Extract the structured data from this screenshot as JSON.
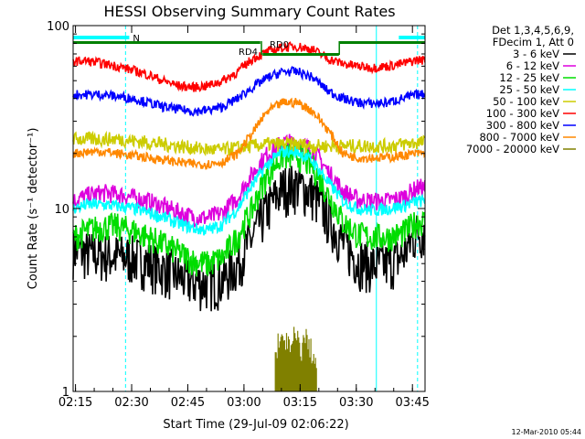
{
  "chart_data": {
    "type": "line",
    "title": "HESSI Observing Summary Count Rates",
    "xlabel": "Start Time (29-Jul-09 02:06:22)",
    "ylabel": "Count Rate (s⁻¹ detector⁻¹)",
    "yscale": "log",
    "ylim": [
      1,
      100
    ],
    "xlim_minutes": [
      8,
      102
    ],
    "x_tick_labels": [
      "02:15",
      "02:30",
      "02:45",
      "03:00",
      "03:15",
      "03:30",
      "03:45"
    ],
    "y_tick_labels": [
      "1",
      "10",
      "100"
    ],
    "legend_header": [
      "Det 1,3,4,5,6,9,",
      "FDecim 1, Att 0"
    ],
    "legend_position": "right",
    "footer": "12-Mar-2010 05:44",
    "series": [
      {
        "name": "3 - 6 keV",
        "color": "#000000",
        "x": [
          8,
          12,
          16,
          20,
          24,
          28,
          32,
          36,
          40,
          44,
          48,
          52,
          56,
          60,
          64,
          68,
          72,
          76,
          80,
          84,
          88,
          92,
          96,
          100
        ],
        "y": [
          6,
          5.7,
          5.6,
          5.5,
          5.4,
          5.1,
          4.7,
          4.3,
          4.0,
          3.9,
          4.1,
          5.0,
          7.0,
          10.0,
          13.0,
          13.5,
          12.0,
          9.0,
          6.5,
          5.2,
          4.9,
          5.0,
          5.5,
          7.5
        ]
      },
      {
        "name": "6 - 12 keV",
        "color": "#dd00dd",
        "x": [
          8,
          12,
          16,
          20,
          24,
          28,
          32,
          36,
          40,
          44,
          48,
          52,
          56,
          60,
          64,
          68,
          72,
          76,
          80,
          84,
          88,
          92,
          96,
          100
        ],
        "y": [
          11,
          11.8,
          12.2,
          12.0,
          11.5,
          11.0,
          10.3,
          9.6,
          9.0,
          8.9,
          9.5,
          11.5,
          15.5,
          20,
          23,
          23,
          21,
          16,
          12.5,
          11.2,
          11,
          11,
          11.5,
          13
        ]
      },
      {
        "name": "12 - 25 keV",
        "color": "#00dd00",
        "x": [
          8,
          12,
          16,
          20,
          24,
          28,
          32,
          36,
          40,
          44,
          48,
          52,
          56,
          60,
          64,
          68,
          72,
          76,
          80,
          84,
          88,
          92,
          96,
          100
        ],
        "y": [
          7,
          7.6,
          8.0,
          8.0,
          7.6,
          7.0,
          6.4,
          5.8,
          5.2,
          5.0,
          5.4,
          7.0,
          10.0,
          15.5,
          19.5,
          19.5,
          17,
          12,
          8.5,
          7.2,
          7,
          7,
          7.3,
          8.5
        ]
      },
      {
        "name": "25 - 50 keV",
        "color": "#00ffff",
        "x": [
          8,
          12,
          16,
          20,
          24,
          28,
          32,
          36,
          40,
          44,
          48,
          52,
          56,
          60,
          64,
          68,
          72,
          76,
          80,
          84,
          88,
          92,
          96,
          100
        ],
        "y": [
          10,
          10.5,
          10.5,
          10.3,
          10.0,
          9.5,
          9.0,
          8.3,
          7.8,
          7.6,
          8.2,
          10.0,
          13.5,
          17.5,
          20.5,
          20.5,
          18,
          14,
          11,
          10,
          9.8,
          10,
          10.3,
          11
        ]
      },
      {
        "name": "50 - 100 keV",
        "color": "#cccc00",
        "x": [
          8,
          12,
          16,
          20,
          24,
          28,
          32,
          36,
          40,
          44,
          48,
          52,
          56,
          60,
          64,
          68,
          72,
          76,
          80,
          84,
          88,
          92,
          96,
          100
        ],
        "y": [
          24,
          24,
          24,
          24,
          23.5,
          23,
          22.5,
          22,
          21.5,
          21,
          21,
          21.5,
          22,
          22.5,
          22.5,
          22.5,
          22,
          22,
          22,
          22,
          22,
          22,
          22.5,
          23
        ]
      },
      {
        "name": "100 - 300 keV",
        "color": "#ff0000",
        "x": [
          8,
          12,
          16,
          20,
          24,
          28,
          32,
          36,
          40,
          44,
          48,
          52,
          56,
          60,
          64,
          68,
          72,
          76,
          80,
          84,
          88,
          92,
          96,
          100
        ],
        "y": [
          64,
          64,
          62,
          60,
          57,
          54,
          50,
          47,
          46,
          47,
          50,
          56,
          66,
          72,
          76,
          77,
          74,
          66,
          62,
          60,
          59,
          60,
          62,
          65
        ]
      },
      {
        "name": "300 - 800 keV",
        "color": "#0000ff",
        "x": [
          8,
          12,
          16,
          20,
          24,
          28,
          32,
          36,
          40,
          44,
          48,
          52,
          56,
          60,
          64,
          68,
          72,
          76,
          80,
          84,
          88,
          92,
          96,
          100
        ],
        "y": [
          42,
          42,
          42,
          41,
          40,
          38,
          36,
          35,
          34,
          34.5,
          36,
          40,
          46,
          52,
          56,
          56,
          52,
          44,
          40,
          38,
          37.5,
          38,
          40,
          42
        ]
      },
      {
        "name": "800 - 7000 keV",
        "color": "#ff8800",
        "x": [
          8,
          12,
          16,
          20,
          24,
          28,
          32,
          36,
          40,
          44,
          48,
          52,
          56,
          60,
          64,
          68,
          72,
          76,
          80,
          84,
          88,
          92,
          96,
          100
        ],
        "y": [
          20,
          20.5,
          20.5,
          20,
          19.5,
          19,
          18.5,
          18,
          17.5,
          17.5,
          18,
          20,
          26,
          34,
          38,
          38,
          34,
          27,
          20,
          19,
          19,
          19,
          19.5,
          20
        ]
      },
      {
        "name": "7000 - 20000 keV",
        "color": "#808000",
        "x": [
          62,
          63,
          64,
          65,
          66,
          67,
          68,
          69,
          70,
          71,
          72,
          73
        ],
        "y": [
          1.5,
          2,
          1.8,
          2,
          1.6,
          2,
          1.9,
          1.7,
          2,
          1.8,
          1.6,
          1.4
        ]
      }
    ],
    "states": {
      "night_bar": {
        "label": "N",
        "color": "#00ffff",
        "segments": [
          [
            8,
            23
          ],
          [
            95,
            102
          ]
        ]
      },
      "rd_bar": {
        "color": "#008000",
        "labels": [
          "RD4",
          "RD0"
        ]
      },
      "vertical_lines": {
        "color": "#00ffff",
        "solid_at": [
          8,
          89
        ],
        "dashed_at": [
          22,
          100
        ]
      }
    }
  }
}
